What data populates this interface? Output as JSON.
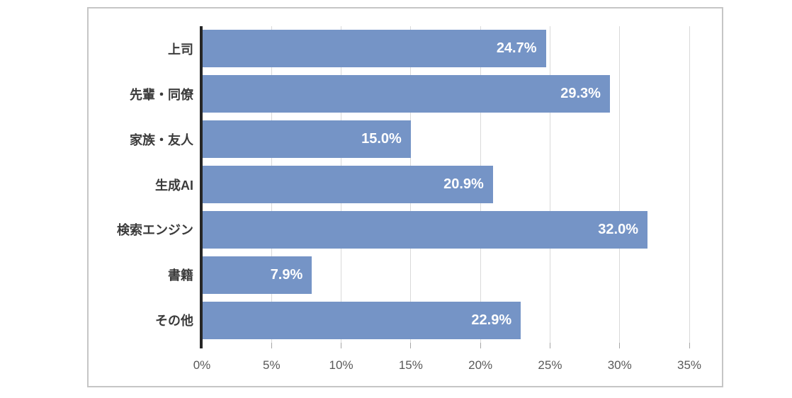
{
  "page": {
    "background": "#ffffff"
  },
  "chart_box": {
    "border_color": "#c6c6c6",
    "background": "#ffffff"
  },
  "chart_data": {
    "type": "bar",
    "orientation": "horizontal",
    "title": "",
    "categories": [
      "上司",
      "先輩・同僚",
      "家族・友人",
      "生成AI",
      "検索エンジン",
      "書籍",
      "その他"
    ],
    "values": [
      24.7,
      29.3,
      15.0,
      20.9,
      32.0,
      7.9,
      22.9
    ],
    "data_labels": [
      "24.7%",
      "29.3%",
      "15.0%",
      "20.9%",
      "32.0%",
      "7.9%",
      "22.9%"
    ],
    "x_tick_labels": [
      "0%",
      "5%",
      "10%",
      "15%",
      "20%",
      "25%",
      "30%",
      "35%"
    ],
    "x_tick_values": [
      0,
      5,
      10,
      15,
      20,
      25,
      30,
      35
    ],
    "xlim": [
      0,
      35
    ],
    "grid": true,
    "legend": false,
    "data_label_position": "inside-end",
    "colors": {
      "bar": "#7594c6",
      "data_label": "#ffffff",
      "category_label": "#3b3b3b",
      "tick_label": "#595959",
      "gridline": "#d9d9d9",
      "axis_line": "#262626",
      "tick_mark": "#a6a6a6"
    }
  }
}
